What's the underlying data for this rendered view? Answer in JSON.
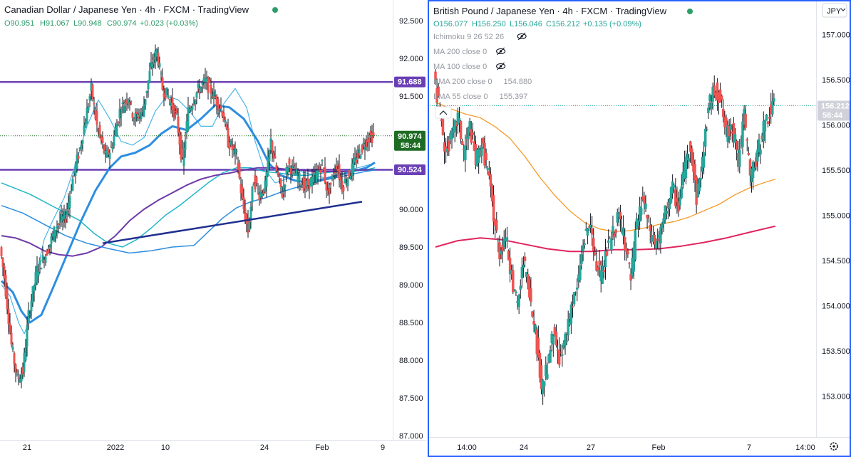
{
  "colors": {
    "up": "#26a69a",
    "down": "#ef5350",
    "wick": "#131722",
    "purple": "#6a3fb5",
    "blue": "#2d8ee0",
    "teal": "#1fb5c8",
    "lightblue": "#4bb6e8",
    "violet": "#6d38a8",
    "navy": "#1f2f8f",
    "orange": "#f7931e",
    "crimson": "#e0245e",
    "active_border": "#2962ff",
    "last_price_green": "#1e6b23",
    "legend_green": "#2e9d6a"
  },
  "chart_data": [
    {
      "type": "candlestick",
      "title": "Canadian Dollar / Japanese Yen · 4h · FXCM · TradingView",
      "ohlc": {
        "o": "O90.951",
        "h": "H91.067",
        "l": "L90.948",
        "c": "C90.974",
        "chg": "+0.023 (+0.03%)"
      },
      "y_ticks": [
        "92.500",
        "92.000",
        "91.500",
        "91.000",
        "90.500",
        "90.000",
        "89.500",
        "89.000",
        "88.500",
        "88.000",
        "87.500",
        "87.000"
      ],
      "x_ticks": [
        "21",
        "2022",
        "10",
        "24",
        "Feb",
        "9"
      ],
      "ylim": [
        87.0,
        92.5
      ],
      "price_tags": [
        {
          "label": "91.688",
          "value": 91.688,
          "kind": "purple"
        },
        {
          "label": "90.974",
          "value": 90.974,
          "kind": "green",
          "sub": "58:44"
        },
        {
          "label": "90.524",
          "value": 90.524,
          "kind": "purple"
        }
      ],
      "horizontal_lines": [
        91.688,
        90.524
      ],
      "trendline": [
        [
          71,
          89.55
        ],
        [
          253,
          90.1
        ]
      ],
      "series": [
        {
          "role": "ma-fast",
          "color": "lightblue",
          "width": 1.2,
          "values": [
            [
              0,
              89.0
            ],
            [
              6,
              88.85
            ],
            [
              12,
              88.5
            ],
            [
              16,
              88.35
            ],
            [
              20,
              88.55
            ],
            [
              24,
              89.1
            ],
            [
              30,
              89.6
            ],
            [
              36,
              89.85
            ],
            [
              44,
              90.15
            ],
            [
              52,
              90.6
            ],
            [
              60,
              91.1
            ],
            [
              68,
              91.45
            ],
            [
              76,
              91.2
            ],
            [
              84,
              90.9
            ],
            [
              92,
              90.85
            ],
            [
              100,
              90.95
            ],
            [
              108,
              91.3
            ],
            [
              116,
              91.5
            ],
            [
              124,
              91.45
            ],
            [
              132,
              91.3
            ],
            [
              140,
              91.1
            ],
            [
              148,
              91.1
            ],
            [
              156,
              91.4
            ],
            [
              164,
              91.6
            ],
            [
              172,
              91.35
            ],
            [
              178,
              90.9
            ],
            [
              184,
              90.55
            ],
            [
              192,
              90.35
            ],
            [
              200,
              90.4
            ],
            [
              210,
              90.5
            ],
            [
              220,
              90.45
            ],
            [
              230,
              90.4
            ],
            [
              240,
              90.5
            ],
            [
              250,
              90.55
            ],
            [
              260,
              90.6
            ]
          ]
        },
        {
          "role": "ma-mid",
          "color": "blue",
          "width": 3,
          "values": [
            [
              0,
              89.05
            ],
            [
              8,
              88.9
            ],
            [
              14,
              88.65
            ],
            [
              20,
              88.5
            ],
            [
              28,
              88.6
            ],
            [
              36,
              88.95
            ],
            [
              46,
              89.4
            ],
            [
              56,
              89.85
            ],
            [
              66,
              90.25
            ],
            [
              76,
              90.55
            ],
            [
              84,
              90.7
            ],
            [
              94,
              90.75
            ],
            [
              104,
              90.85
            ],
            [
              112,
              91.0
            ],
            [
              120,
              91.1
            ],
            [
              130,
              91.05
            ],
            [
              140,
              91.2
            ],
            [
              150,
              91.38
            ],
            [
              160,
              91.35
            ],
            [
              170,
              91.2
            ],
            [
              180,
              90.9
            ],
            [
              188,
              90.6
            ],
            [
              196,
              90.45
            ],
            [
              206,
              90.38
            ],
            [
              216,
              90.35
            ],
            [
              226,
              90.4
            ],
            [
              236,
              90.45
            ],
            [
              246,
              90.5
            ],
            [
              256,
              90.55
            ],
            [
              262,
              90.62
            ]
          ]
        },
        {
          "role": "ema-teal",
          "color": "teal",
          "width": 1.5,
          "values": [
            [
              0,
              90.35
            ],
            [
              20,
              90.2
            ],
            [
              40,
              90.0
            ],
            [
              55,
              89.85
            ],
            [
              65,
              89.68
            ],
            [
              75,
              89.55
            ],
            [
              85,
              89.5
            ],
            [
              95,
              89.6
            ],
            [
              105,
              89.75
            ],
            [
              115,
              89.92
            ],
            [
              125,
              90.05
            ],
            [
              135,
              90.2
            ],
            [
              145,
              90.35
            ],
            [
              155,
              90.48
            ],
            [
              165,
              90.55
            ],
            [
              175,
              90.55
            ],
            [
              185,
              90.5
            ],
            [
              195,
              90.48
            ],
            [
              205,
              90.45
            ],
            [
              215,
              90.45
            ],
            [
              225,
              90.48
            ],
            [
              235,
              90.5
            ],
            [
              245,
              90.5
            ],
            [
              255,
              90.52
            ],
            [
              262,
              90.55
            ]
          ]
        },
        {
          "role": "ema-violet",
          "color": "violet",
          "width": 2,
          "values": [
            [
              0,
              89.65
            ],
            [
              10,
              89.62
            ],
            [
              20,
              89.55
            ],
            [
              30,
              89.45
            ],
            [
              40,
              89.4
            ],
            [
              50,
              89.38
            ],
            [
              60,
              89.42
            ],
            [
              70,
              89.5
            ],
            [
              80,
              89.65
            ],
            [
              90,
              89.85
            ],
            [
              100,
              90.0
            ],
            [
              110,
              90.12
            ],
            [
              120,
              90.22
            ],
            [
              130,
              90.32
            ],
            [
              140,
              90.4
            ],
            [
              150,
              90.45
            ],
            [
              160,
              90.48
            ],
            [
              170,
              90.52
            ],
            [
              180,
              90.55
            ],
            [
              190,
              90.55
            ],
            [
              200,
              90.53
            ],
            [
              210,
              90.52
            ],
            [
              220,
              90.5
            ],
            [
              230,
              90.5
            ],
            [
              240,
              90.5
            ],
            [
              250,
              90.52
            ],
            [
              262,
              90.52
            ]
          ]
        },
        {
          "role": "ma-slow",
          "color": "blue",
          "width": 1.5,
          "values": [
            [
              0,
              90.05
            ],
            [
              15,
              89.95
            ],
            [
              30,
              89.8
            ],
            [
              45,
              89.65
            ],
            [
              60,
              89.55
            ],
            [
              75,
              89.48
            ],
            [
              90,
              89.42
            ],
            [
              105,
              89.45
            ],
            [
              120,
              89.5
            ],
            [
              135,
              89.52
            ],
            [
              145,
              89.7
            ],
            [
              155,
              89.88
            ],
            [
              165,
              90.02
            ],
            [
              175,
              90.1
            ],
            [
              185,
              90.15
            ],
            [
              195,
              90.22
            ],
            [
              205,
              90.28
            ],
            [
              215,
              90.33
            ],
            [
              225,
              90.38
            ],
            [
              235,
              90.42
            ],
            [
              245,
              90.46
            ],
            [
              255,
              90.5
            ],
            [
              262,
              90.52
            ]
          ]
        }
      ]
    },
    {
      "type": "candlestick",
      "title": "British Pound / Japanese Yen · 4h · FXCM · TradingView",
      "ohlc": {
        "o": "O156.077",
        "h": "H156.250",
        "l": "L156.046",
        "c": "C156.212",
        "chg": "+0.135 (+0.09%)"
      },
      "indicators": [
        {
          "label": "Ichimoku 9 26 52 26",
          "hidden": true
        },
        {
          "label": "MA 200 close 0",
          "hidden": true
        },
        {
          "label": "MA 100 close 0",
          "hidden": true
        },
        {
          "label": "EMA 200 close 0",
          "value": "154.880",
          "color": "crimson"
        },
        {
          "label": "EMA 55 close 0",
          "value": "155.397",
          "color": "orange"
        }
      ],
      "currency": "JPY",
      "y_ticks": [
        "157.000",
        "156.500",
        "156.000",
        "155.500",
        "155.000",
        "154.500",
        "154.000",
        "153.500",
        "153.000"
      ],
      "x_ticks": [
        "14:00",
        "24",
        "27",
        "Feb",
        "7",
        "14:00"
      ],
      "ylim": [
        152.8,
        157.2
      ],
      "price_tags": [
        {
          "label": "156.212",
          "value": 156.212,
          "kind": "gray",
          "sub": "58:44"
        }
      ],
      "series": [
        {
          "name": "EMA 55 close 0",
          "color": "orange",
          "width": 1.2,
          "values": [
            [
              0,
              156.25
            ],
            [
              10,
              156.18
            ],
            [
              20,
              156.12
            ],
            [
              30,
              156.08
            ],
            [
              40,
              155.98
            ],
            [
              50,
              155.85
            ],
            [
              60,
              155.65
            ],
            [
              70,
              155.42
            ],
            [
              80,
              155.22
            ],
            [
              90,
              155.05
            ],
            [
              100,
              154.92
            ],
            [
              110,
              154.85
            ],
            [
              120,
              154.82
            ],
            [
              130,
              154.83
            ],
            [
              140,
              154.86
            ],
            [
              150,
              154.9
            ],
            [
              160,
              154.93
            ],
            [
              170,
              154.98
            ],
            [
              180,
              155.05
            ],
            [
              190,
              155.12
            ],
            [
              200,
              155.22
            ],
            [
              210,
              155.3
            ],
            [
              220,
              155.36
            ],
            [
              228,
              155.4
            ]
          ]
        },
        {
          "name": "EMA 200 close 0",
          "color": "crimson",
          "width": 2,
          "values": [
            [
              0,
              154.65
            ],
            [
              15,
              154.72
            ],
            [
              30,
              154.75
            ],
            [
              45,
              154.73
            ],
            [
              60,
              154.68
            ],
            [
              75,
              154.63
            ],
            [
              90,
              154.6
            ],
            [
              105,
              154.6
            ],
            [
              120,
              154.62
            ],
            [
              135,
              154.62
            ],
            [
              150,
              154.63
            ],
            [
              165,
              154.66
            ],
            [
              180,
              154.7
            ],
            [
              195,
              154.75
            ],
            [
              210,
              154.81
            ],
            [
              228,
              154.88
            ]
          ]
        }
      ]
    }
  ]
}
